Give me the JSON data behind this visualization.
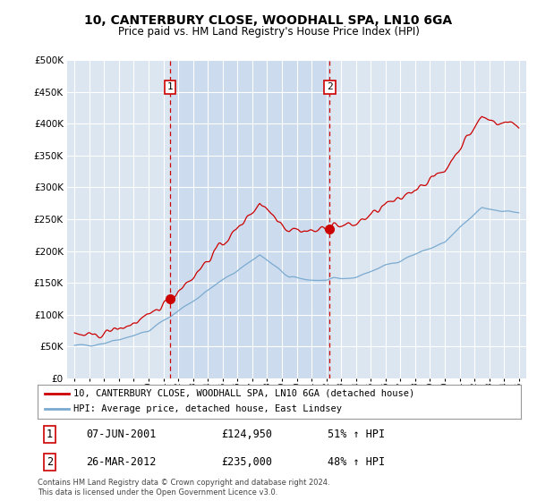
{
  "title": "10, CANTERBURY CLOSE, WOODHALL SPA, LN10 6GA",
  "subtitle": "Price paid vs. HM Land Registry's House Price Index (HPI)",
  "legend_line1": "10, CANTERBURY CLOSE, WOODHALL SPA, LN10 6GA (detached house)",
  "legend_line2": "HPI: Average price, detached house, East Lindsey",
  "transaction1_date": "07-JUN-2001",
  "transaction1_price": "£124,950",
  "transaction1_hpi": "51% ↑ HPI",
  "transaction2_date": "26-MAR-2012",
  "transaction2_price": "£235,000",
  "transaction2_hpi": "48% ↑ HPI",
  "footer": "Contains HM Land Registry data © Crown copyright and database right 2024.\nThis data is licensed under the Open Government Licence v3.0.",
  "line_color_red": "#cc0000",
  "line_color_blue": "#7aaad0",
  "bg_color": "#dce6f1",
  "bg_color_between": "#ccdcee",
  "grid_color": "#ffffff",
  "transaction1_x": 2001.44,
  "transaction2_x": 2012.23,
  "p1": 124950,
  "p2": 235000,
  "ylim_max": 500000,
  "ylim_min": 0,
  "xmin": 1994.5,
  "xmax": 2025.5
}
